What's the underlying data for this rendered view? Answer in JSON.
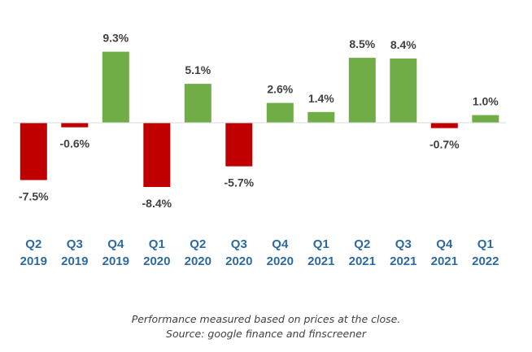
{
  "chart_data": {
    "type": "bar",
    "categories": [
      [
        "Q2",
        "2019"
      ],
      [
        "Q3",
        "2019"
      ],
      [
        "Q4",
        "2019"
      ],
      [
        "Q1",
        "2020"
      ],
      [
        "Q2",
        "2020"
      ],
      [
        "Q3",
        "2020"
      ],
      [
        "Q4",
        "2020"
      ],
      [
        "Q1",
        "2021"
      ],
      [
        "Q2",
        "2021"
      ],
      [
        "Q3",
        "2021"
      ],
      [
        "Q4",
        "2021"
      ],
      [
        "Q1",
        "2022"
      ]
    ],
    "values": [
      -7.5,
      -0.6,
      9.3,
      -8.4,
      5.1,
      -5.7,
      2.6,
      1.4,
      8.5,
      8.4,
      -0.7,
      1.0
    ],
    "labels": [
      "-7.5%",
      "-0.6%",
      "9.3%",
      "-8.4%",
      "5.1%",
      "-5.7%",
      "2.6%",
      "1.4%",
      "8.5%",
      "8.4%",
      "-0.7%",
      "1.0%"
    ],
    "ylim": [
      -9.5,
      10
    ],
    "grid": false,
    "colors": {
      "positive": "#70ad47",
      "negative": "#c00000",
      "tick_label": "#2e6a9e",
      "value_label": "#404040",
      "baseline": "#d9d9d9"
    }
  },
  "footnote": {
    "line1": "Performance measured based on prices at the close.",
    "line2": "Source: google finance and finscreener"
  }
}
